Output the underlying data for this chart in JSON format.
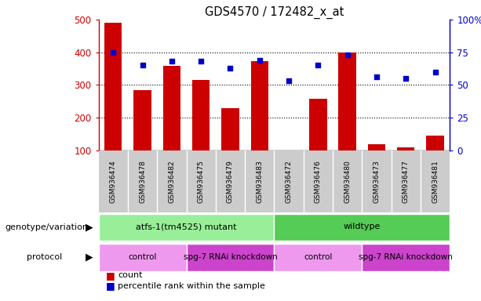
{
  "title": "GDS4570 / 172482_x_at",
  "samples": [
    "GSM936474",
    "GSM936478",
    "GSM936482",
    "GSM936475",
    "GSM936479",
    "GSM936483",
    "GSM936472",
    "GSM936476",
    "GSM936480",
    "GSM936473",
    "GSM936477",
    "GSM936481"
  ],
  "counts": [
    490,
    285,
    358,
    315,
    230,
    372,
    100,
    258,
    400,
    120,
    110,
    145
  ],
  "percentiles": [
    75,
    65,
    68,
    68,
    63,
    69,
    53,
    65,
    73,
    56,
    55,
    60
  ],
  "y_min": 100,
  "y_max": 500,
  "y_ticks_left": [
    100,
    200,
    300,
    400,
    500
  ],
  "y_ticks_right": [
    0,
    25,
    50,
    75,
    100
  ],
  "bar_color": "#CC0000",
  "scatter_color": "#0000CC",
  "bg_color": "#FFFFFF",
  "tick_label_color": "#BBBBBB",
  "genotype_row": [
    {
      "label": "atfs-1(tm4525) mutant",
      "start": 0,
      "end": 6,
      "color": "#99EE99"
    },
    {
      "label": "wildtype",
      "start": 6,
      "end": 12,
      "color": "#55CC55"
    }
  ],
  "protocol_row": [
    {
      "label": "control",
      "start": 0,
      "end": 3,
      "color": "#EE99EE"
    },
    {
      "label": "spg-7 RNAi knockdown",
      "start": 3,
      "end": 6,
      "color": "#CC44CC"
    },
    {
      "label": "control",
      "start": 6,
      "end": 9,
      "color": "#EE99EE"
    },
    {
      "label": "spg-7 RNAi knockdown",
      "start": 9,
      "end": 12,
      "color": "#CC44CC"
    }
  ],
  "genotype_label": "genotype/variation",
  "protocol_label": "protocol",
  "legend_count": "count",
  "legend_pct": "percentile rank within the sample"
}
